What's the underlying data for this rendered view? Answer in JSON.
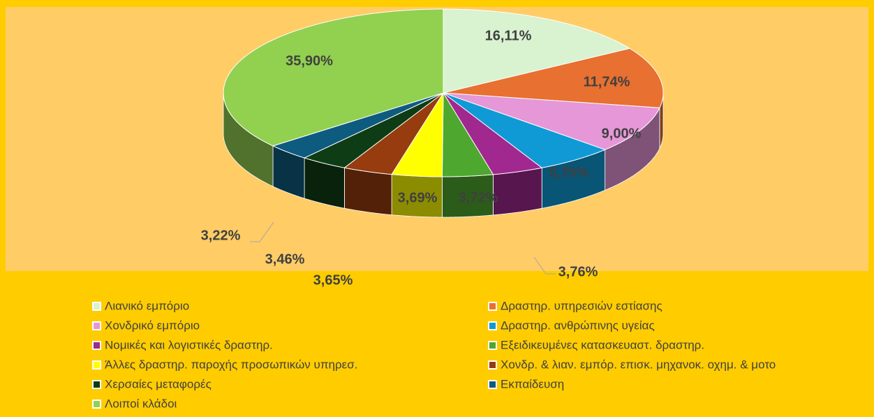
{
  "chart_data": {
    "type": "pie3d",
    "categories": [
      "Λιανικό εμπόριο",
      "Δραστηρ. υπηρεσιών εστίασης",
      "Χονδρικό εμπόριο",
      "Δραστηρ. ανθρώπινης υγείας",
      "Νομικές και λογιστικές δραστηρ.",
      "Εξειδικευμένες κατασκευαστ. δραστηρ.",
      "Άλλες δραστηρ. παροχής προσωπικών υπηρεσ.",
      "Χονδρ. & λιαν. εμπόρ. επισκ. μηχανοκ. οχημ. & μοτο",
      "Χερσαίες μεταφορές",
      "Εκπαίδευση",
      "Λοιποί κλάδοι"
    ],
    "values": [
      16.11,
      11.74,
      9.0,
      5.75,
      3.76,
      3.72,
      3.69,
      3.65,
      3.46,
      3.22,
      35.9
    ],
    "value_labels": [
      "16,11%",
      "11,74%",
      "9,00%",
      "5,75%",
      "3,76%",
      "3,72%",
      "3,69%",
      "3,65%",
      "3,46%",
      "3,22%",
      "35,90%"
    ],
    "colors": [
      "#d9f2d0",
      "#e87030",
      "#e597d8",
      "#0f9ad6",
      "#a0288f",
      "#4ea72e",
      "#ffff00",
      "#963c0f",
      "#0e3d15",
      "#0e5b80",
      "#92d050"
    ],
    "legend": "bottom"
  }
}
